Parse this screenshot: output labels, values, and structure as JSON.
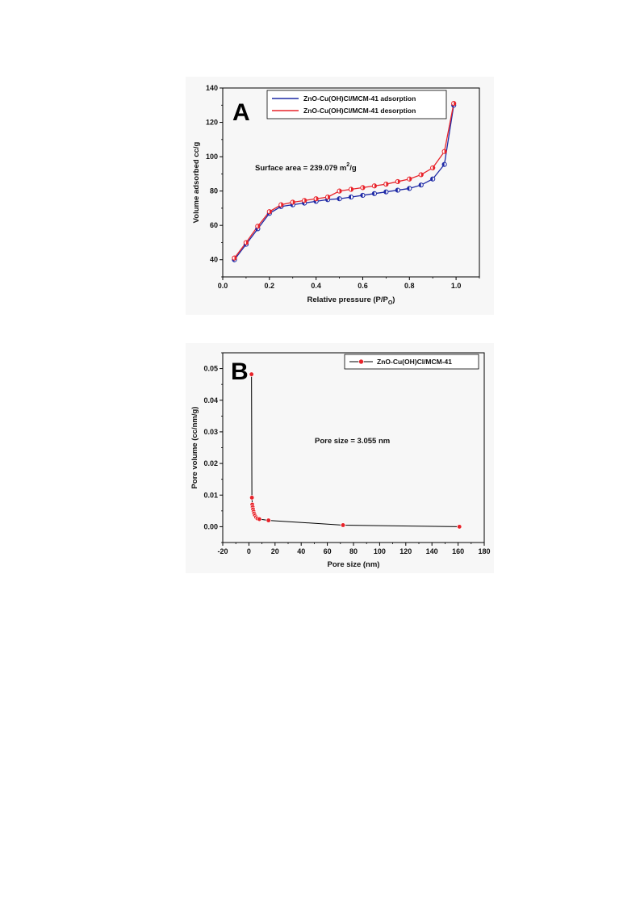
{
  "chart_data": [
    {
      "type": "line",
      "panel_label": "A",
      "xlabel": "Relative pressure (P/P",
      "xlabel_sub": "O",
      "xlabel_end": ")",
      "ylabel": "Volume adsorbed cc/g",
      "xlim": [
        0.0,
        1.1
      ],
      "ylim": [
        30,
        140
      ],
      "xticks": [
        "0.0",
        "0.2",
        "0.4",
        "0.6",
        "0.8",
        "1.0"
      ],
      "yticks": [
        "40",
        "60",
        "80",
        "100",
        "120",
        "140"
      ],
      "annotation": "Surface area = 239.079 m",
      "annotation_sup": "2",
      "annotation_end": "/g",
      "legend": "top-right",
      "series": [
        {
          "name": "ZnO-Cu(OH)Cl/MCM-41 adsorption",
          "color": "#1f2aa6",
          "x": [
            0.05,
            0.1,
            0.15,
            0.2,
            0.25,
            0.3,
            0.35,
            0.4,
            0.45,
            0.5,
            0.55,
            0.6,
            0.65,
            0.7,
            0.75,
            0.8,
            0.85,
            0.9,
            0.95,
            0.99
          ],
          "y": [
            40,
            49,
            58,
            67,
            71,
            72,
            73,
            74,
            75,
            75.5,
            76.5,
            77.5,
            78.5,
            79.5,
            80.5,
            81.5,
            83.5,
            87,
            95.5,
            130
          ]
        },
        {
          "name": "ZnO-Cu(OH)Cl/MCM-41 desorption",
          "color": "#e8232a",
          "x": [
            0.05,
            0.1,
            0.15,
            0.2,
            0.25,
            0.3,
            0.35,
            0.4,
            0.45,
            0.5,
            0.55,
            0.6,
            0.65,
            0.7,
            0.75,
            0.8,
            0.85,
            0.9,
            0.95,
            0.99
          ],
          "y": [
            41,
            50,
            59.5,
            68,
            72,
            73.5,
            74.5,
            75.5,
            76.5,
            80,
            81,
            82,
            83,
            84,
            85.5,
            87,
            89.5,
            93.5,
            103,
            131
          ]
        }
      ]
    },
    {
      "type": "line",
      "panel_label": "B",
      "xlabel": "Pore size (nm)",
      "ylabel": "Pore volume (cc/nm/g)",
      "xlim": [
        -20,
        180
      ],
      "ylim": [
        -0.005,
        0.055
      ],
      "xticks": [
        "-20",
        "0",
        "20",
        "40",
        "60",
        "80",
        "100",
        "120",
        "140",
        "160",
        "180"
      ],
      "yticks": [
        "0.00",
        "0.01",
        "0.02",
        "0.03",
        "0.04",
        "0.05"
      ],
      "annotation": "Pore size = 3.055 nm",
      "legend": "top-right",
      "series": [
        {
          "name": "ZnO-Cu(OH)Cl/MCM-41",
          "color": "#e8232a",
          "line_color": "#000000",
          "x": [
            2.0,
            2.3,
            2.6,
            2.9,
            3.2,
            3.6,
            4.0,
            4.6,
            5.5,
            6.5,
            8.0,
            15,
            72,
            161
          ],
          "y": [
            0.0482,
            0.0092,
            0.007,
            0.0062,
            0.0055,
            0.0048,
            0.0042,
            0.0036,
            0.003,
            0.0026,
            0.0024,
            0.002,
            0.0005,
            0.0
          ]
        }
      ]
    }
  ]
}
